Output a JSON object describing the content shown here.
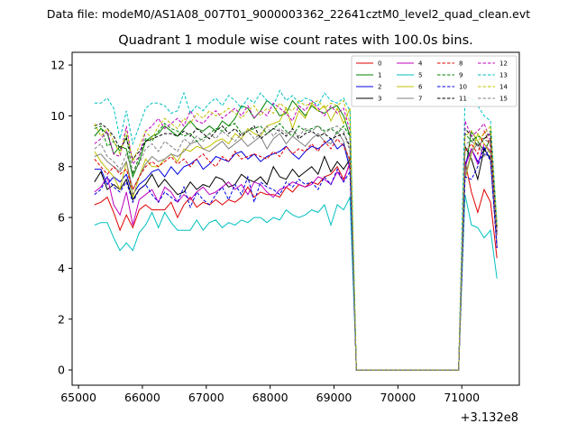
{
  "header_text": "Data file: modeM0/AS1A08_007T01_9000003362_22641cztM0_level2_quad_clean.evt",
  "chart_data": {
    "type": "line",
    "title": "Quadrant 1 module wise count rates with 100.0s bins.",
    "xlabel": "",
    "ylabel": "",
    "x_offset_label": "+3.132e8",
    "xlim": [
      64900,
      71900
    ],
    "ylim": [
      -0.6,
      12.5
    ],
    "x_ticks": [
      65000,
      66000,
      67000,
      68000,
      69000,
      70000,
      71000
    ],
    "x_tick_labels": [
      "65000",
      "66000",
      "67000",
      "68000",
      "69000",
      "70000",
      "71000"
    ],
    "y_ticks": [
      0,
      2,
      4,
      6,
      8,
      10,
      12
    ],
    "y_tick_labels": [
      "0",
      "2",
      "4",
      "6",
      "8",
      "10",
      "12"
    ],
    "grid": false,
    "legend_position": "top-right",
    "legend_columns": 4,
    "x": [
      65250,
      65350,
      65450,
      65550,
      65650,
      65750,
      65850,
      65950,
      66050,
      66150,
      66250,
      66350,
      66450,
      66550,
      66650,
      66750,
      66850,
      66950,
      67050,
      67150,
      67250,
      67350,
      67450,
      67550,
      67650,
      67750,
      67850,
      67950,
      68050,
      68150,
      68250,
      68350,
      68450,
      68550,
      68650,
      68750,
      68850,
      68950,
      69050,
      69150,
      69250,
      69350,
      70950,
      71050,
      71150,
      71250,
      71350,
      71450,
      71550
    ],
    "series": [
      {
        "name": "0",
        "color": "#e00000",
        "dash": "solid",
        "values": [
          6.5,
          6.6,
          6.8,
          6.2,
          5.5,
          6.1,
          5.6,
          6.3,
          6.5,
          6.3,
          6.3,
          6.3,
          6.6,
          6.0,
          6.5,
          6.8,
          6.4,
          6.6,
          6.5,
          6.7,
          6.5,
          6.7,
          6.6,
          6.8,
          7.2,
          6.8,
          7.0,
          6.9,
          6.9,
          6.8,
          7.2,
          7.0,
          7.3,
          7.2,
          7.4,
          7.3,
          7.6,
          7.7,
          8.0,
          7.5,
          8.1,
          0.0,
          0.0,
          8.2,
          7.0,
          6.2,
          7.1,
          6.6,
          4.4
        ]
      },
      {
        "name": "1",
        "color": "#008000",
        "dash": "solid",
        "values": [
          9.2,
          9.5,
          9.3,
          8.5,
          8.8,
          8.7,
          7.6,
          8.2,
          9.0,
          9.2,
          9.3,
          9.6,
          9.4,
          9.2,
          9.5,
          9.8,
          9.5,
          9.4,
          9.6,
          9.4,
          9.8,
          9.6,
          9.9,
          10.4,
          10.3,
          9.9,
          10.2,
          10.6,
          10.4,
          10.0,
          10.1,
          10.6,
          10.3,
          10.0,
          10.4,
          10.2,
          10.1,
          10.3,
          10.4,
          10.0,
          9.2,
          0.0,
          0.0,
          7.8,
          9.4,
          9.0,
          8.6,
          9.1,
          5.7
        ]
      },
      {
        "name": "2",
        "color": "#0000e0",
        "dash": "solid",
        "values": [
          7.9,
          7.9,
          7.3,
          7.6,
          7.4,
          7.7,
          6.9,
          7.3,
          7.5,
          7.8,
          7.9,
          7.6,
          8.0,
          7.7,
          8.0,
          8.1,
          8.3,
          7.9,
          8.1,
          8.4,
          8.3,
          8.2,
          8.5,
          8.6,
          8.3,
          8.5,
          8.2,
          8.4,
          8.5,
          8.6,
          8.8,
          8.5,
          8.3,
          8.6,
          8.8,
          8.7,
          8.9,
          9.1,
          8.7,
          8.9,
          7.9,
          0.0,
          0.0,
          8.1,
          8.7,
          8.2,
          8.5,
          8.4,
          4.8
        ]
      },
      {
        "name": "3",
        "color": "#000000",
        "dash": "solid",
        "values": [
          7.4,
          7.8,
          7.1,
          7.3,
          7.1,
          7.5,
          6.7,
          7.1,
          7.3,
          7.7,
          7.2,
          7.5,
          7.2,
          6.9,
          7.0,
          7.4,
          7.1,
          7.3,
          7.2,
          7.6,
          7.5,
          7.2,
          7.3,
          7.7,
          7.5,
          7.4,
          7.6,
          7.3,
          8.0,
          7.6,
          7.5,
          7.9,
          7.6,
          7.8,
          8.0,
          7.7,
          8.4,
          7.8,
          8.2,
          7.9,
          8.3,
          0.0,
          0.0,
          8.8,
          8.3,
          7.5,
          8.7,
          8.3,
          4.9
        ]
      },
      {
        "name": "4",
        "color": "#c000c0",
        "dash": "solid",
        "values": [
          7.0,
          7.2,
          7.6,
          6.5,
          6.1,
          7.0,
          5.7,
          6.7,
          6.9,
          7.1,
          6.6,
          7.2,
          7.0,
          6.6,
          6.9,
          6.7,
          7.0,
          7.2,
          6.9,
          7.0,
          7.2,
          7.4,
          7.1,
          7.3,
          6.9,
          7.4,
          7.3,
          7.0,
          6.8,
          7.1,
          7.2,
          7.4,
          7.3,
          7.2,
          7.3,
          7.6,
          7.5,
          7.3,
          7.8,
          7.4,
          8.2,
          0.0,
          0.0,
          8.0,
          8.7,
          8.1,
          8.9,
          8.6,
          4.8
        ]
      },
      {
        "name": "5",
        "color": "#00c0c0",
        "dash": "solid",
        "values": [
          5.7,
          5.8,
          5.8,
          5.2,
          4.7,
          5.0,
          4.7,
          5.4,
          5.7,
          6.2,
          5.6,
          6.2,
          5.8,
          5.5,
          5.5,
          5.5,
          5.9,
          5.5,
          5.8,
          5.9,
          5.6,
          5.8,
          5.7,
          5.9,
          5.8,
          6.0,
          6.0,
          5.8,
          6.0,
          5.9,
          6.3,
          6.1,
          6.0,
          6.1,
          6.3,
          6.2,
          6.5,
          5.7,
          6.5,
          6.3,
          6.8,
          0.0,
          0.0,
          6.9,
          5.7,
          5.6,
          5.2,
          5.5,
          3.6
        ]
      },
      {
        "name": "6",
        "color": "#c0c000",
        "dash": "solid",
        "values": [
          8.6,
          8.2,
          7.9,
          7.6,
          7.1,
          8.2,
          6.8,
          7.6,
          8.3,
          8.0,
          8.0,
          8.3,
          8.5,
          8.2,
          8.7,
          8.6,
          8.8,
          8.7,
          8.8,
          9.0,
          9.1,
          8.9,
          9.3,
          9.1,
          9.5,
          9.3,
          9.2,
          9.6,
          9.7,
          9.8,
          10.3,
          9.5,
          10.2,
          9.9,
          10.5,
          10.2,
          10.4,
          9.8,
          10.3,
          9.7,
          10.3,
          0.0,
          0.0,
          7.5,
          8.5,
          9.3,
          8.9,
          8.5,
          5.6
        ]
      },
      {
        "name": "7",
        "color": "#808080",
        "dash": "solid",
        "values": [
          8.4,
          8.5,
          8.2,
          8.0,
          7.8,
          8.2,
          7.1,
          7.6,
          8.1,
          8.4,
          8.2,
          8.3,
          8.5,
          8.4,
          8.6,
          8.9,
          9.0,
          8.7,
          8.6,
          8.8,
          9.0,
          8.7,
          8.9,
          9.1,
          8.8,
          9.0,
          9.2,
          8.7,
          9.1,
          9.3,
          8.9,
          9.2,
          9.0,
          8.8,
          9.1,
          9.3,
          9.0,
          8.9,
          9.4,
          9.0,
          8.1,
          0.0,
          0.0,
          7.6,
          8.6,
          8.9,
          8.4,
          8.7,
          4.9
        ]
      },
      {
        "name": "8",
        "color": "#e00000",
        "dash": "dashed",
        "values": [
          8.3,
          8.0,
          7.7,
          8.0,
          7.7,
          7.9,
          7.1,
          7.6,
          8.0,
          8.2,
          8.0,
          8.2,
          8.4,
          8.1,
          8.3,
          8.0,
          8.3,
          8.5,
          8.2,
          8.0,
          8.4,
          8.2,
          8.6,
          8.3,
          8.4,
          8.5,
          8.4,
          8.3,
          8.6,
          8.4,
          8.8,
          8.5,
          8.7,
          8.6,
          8.9,
          8.6,
          9.0,
          8.7,
          9.1,
          8.8,
          8.3,
          0.0,
          0.0,
          8.6,
          8.9,
          8.5,
          9.4,
          8.8,
          5.3
        ]
      },
      {
        "name": "9",
        "color": "#008000",
        "dash": "dashed",
        "values": [
          9.5,
          9.6,
          8.8,
          9.0,
          8.6,
          9.2,
          7.7,
          8.4,
          9.1,
          9.0,
          9.4,
          9.7,
          9.5,
          9.4,
          9.2,
          9.3,
          9.0,
          9.1,
          9.3,
          9.5,
          9.4,
          9.6,
          9.7,
          9.3,
          9.4,
          9.5,
          9.6,
          9.3,
          9.5,
          9.7,
          9.4,
          9.2,
          9.6,
          9.4,
          9.5,
          9.6,
          9.4,
          9.5,
          9.3,
          9.6,
          9.2,
          0.0,
          0.0,
          9.3,
          9.0,
          9.2,
          9.1,
          9.4,
          5.6
        ]
      },
      {
        "name": "10",
        "color": "#0000e0",
        "dash": "dashed",
        "values": [
          6.9,
          7.1,
          7.6,
          7.2,
          7.0,
          7.4,
          6.6,
          7.1,
          7.3,
          6.9,
          6.6,
          7.0,
          6.8,
          6.6,
          7.2,
          6.4,
          7.0,
          6.7,
          6.5,
          6.9,
          7.2,
          6.7,
          7.3,
          6.9,
          7.6,
          6.6,
          7.4,
          7.2,
          7.1,
          6.9,
          7.4,
          7.2,
          7.5,
          7.3,
          7.4,
          7.1,
          7.6,
          7.3,
          7.9,
          7.4,
          7.8,
          0.0,
          0.0,
          7.6,
          7.5,
          8.0,
          8.8,
          8.2,
          4.8
        ]
      },
      {
        "name": "11",
        "color": "#000000",
        "dash": "dashed",
        "values": [
          9.6,
          9.7,
          9.5,
          9.2,
          8.7,
          9.1,
          8.3,
          8.6,
          9.0,
          9.1,
          9.2,
          9.3,
          9.3,
          9.2,
          9.4,
          9.2,
          9.5,
          9.3,
          9.1,
          9.4,
          9.6,
          9.3,
          9.5,
          9.2,
          9.4,
          9.6,
          9.1,
          9.3,
          9.5,
          9.4,
          9.2,
          9.5,
          9.1,
          9.3,
          9.4,
          9.2,
          9.3,
          9.1,
          9.2,
          9.3,
          8.8,
          0.0,
          0.0,
          9.5,
          9.2,
          8.8,
          9.1,
          9.3,
          5.4
        ]
      },
      {
        "name": "12",
        "color": "#c000c0",
        "dash": "dashed",
        "values": [
          8.9,
          9.1,
          9.4,
          8.5,
          8.4,
          9.6,
          8.1,
          8.4,
          9.4,
          9.6,
          9.9,
          9.5,
          9.7,
          9.9,
          9.6,
          10.2,
          9.8,
          9.7,
          10.0,
          10.2,
          9.9,
          10.1,
          10.3,
          10.0,
          10.4,
          9.9,
          10.2,
          10.0,
          10.5,
          10.3,
          10.1,
          9.8,
          10.4,
          10.2,
          10.6,
          10.3,
          10.0,
          10.4,
          10.1,
          10.3,
          9.4,
          0.0,
          0.0,
          9.8,
          9.2,
          9.4,
          9.7,
          9.0,
          5.3
        ]
      },
      {
        "name": "13",
        "color": "#00c0c0",
        "dash": "dashed",
        "values": [
          10.5,
          10.5,
          10.7,
          10.3,
          9.1,
          10.2,
          8.9,
          9.6,
          10.3,
          10.5,
          10.5,
          10.4,
          10.1,
          10.2,
          10.9,
          10.1,
          10.4,
          10.2,
          10.5,
          10.7,
          10.4,
          10.8,
          10.6,
          10.3,
          10.7,
          10.5,
          10.9,
          10.6,
          10.4,
          11.0,
          10.6,
          10.8,
          10.5,
          10.7,
          10.6,
          10.4,
          10.9,
          10.6,
          10.5,
          10.7,
          10.2,
          0.0,
          0.0,
          10.7,
          10.7,
          10.4,
          10.0,
          9.8,
          5.8
        ]
      },
      {
        "name": "14",
        "color": "#c0c000",
        "dash": "dashed",
        "values": [
          9.7,
          9.2,
          9.5,
          9.0,
          8.5,
          9.4,
          8.2,
          8.8,
          9.4,
          9.1,
          9.6,
          9.9,
          9.7,
          9.5,
          9.9,
          9.7,
          10.1,
          9.9,
          10.2,
          10.0,
          10.1,
          10.3,
          10.1,
          9.9,
          10.2,
          10.4,
          10.0,
          10.3,
          10.1,
          10.5,
          10.3,
          10.2,
          10.6,
          10.4,
          10.5,
          10.6,
          10.3,
          10.5,
          10.4,
          10.6,
          9.7,
          0.0,
          0.0,
          9.2,
          9.4,
          9.0,
          9.3,
          9.6,
          5.7
        ]
      },
      {
        "name": "15",
        "color": "#808080",
        "dash": "dashed",
        "values": [
          8.7,
          8.9,
          8.4,
          8.2,
          7.9,
          8.5,
          7.8,
          8.1,
          8.7,
          8.9,
          8.6,
          9.0,
          8.8,
          8.6,
          9.1,
          8.9,
          9.2,
          9.0,
          9.3,
          9.1,
          9.4,
          9.2,
          9.0,
          9.3,
          9.4,
          9.1,
          9.3,
          9.6,
          9.2,
          9.5,
          9.3,
          9.4,
          9.2,
          9.5,
          9.4,
          9.6,
          9.3,
          9.5,
          9.6,
          9.4,
          8.6,
          0.0,
          0.0,
          8.9,
          9.0,
          8.8,
          9.1,
          8.9,
          5.3
        ]
      }
    ]
  }
}
